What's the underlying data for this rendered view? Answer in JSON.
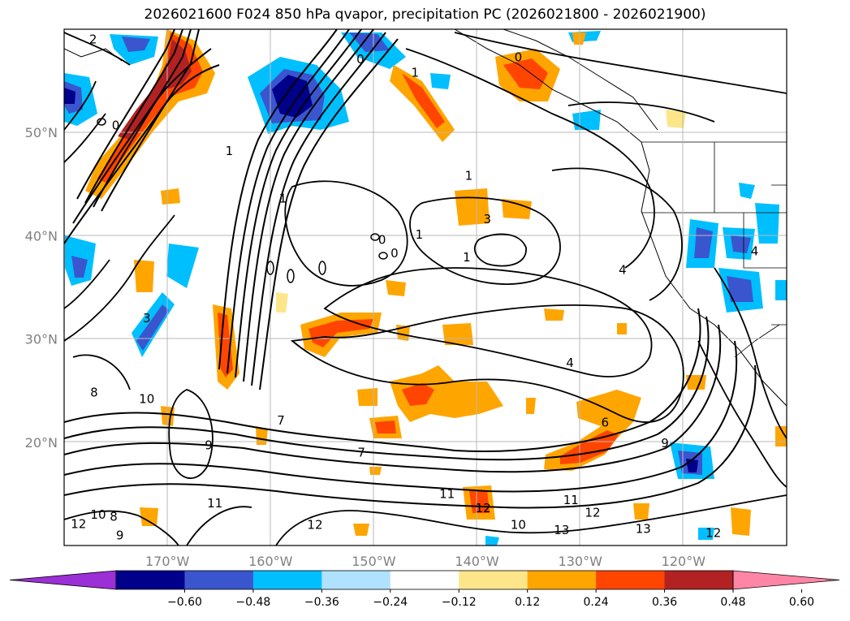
{
  "title": "2026021600 F024 850 hPa qvapor, precipitation PC (2026021800 - 2026021900)",
  "map": {
    "lon_range": [
      -180,
      -110
    ],
    "lat_range": [
      10,
      60
    ],
    "lat_ticks": [
      {
        "value": 20,
        "label": "20°N"
      },
      {
        "value": 30,
        "label": "30°N"
      },
      {
        "value": 40,
        "label": "40°N"
      },
      {
        "value": 50,
        "label": "50°N"
      }
    ],
    "lon_ticks": [
      {
        "value": -170,
        "label": "170°W"
      },
      {
        "value": -160,
        "label": "160°W"
      },
      {
        "value": -150,
        "label": "150°W"
      },
      {
        "value": -140,
        "label": "140°W"
      },
      {
        "value": -130,
        "label": "130°W"
      },
      {
        "value": -120,
        "label": "120°W"
      }
    ],
    "grid": true
  },
  "colorbar": {
    "ticks": [
      "-0.60",
      "-0.48",
      "-0.36",
      "-0.24",
      "-0.12",
      "0.12",
      "0.24",
      "0.36",
      "0.48",
      "0.60"
    ],
    "colors": [
      "#9b30d6",
      "#00008b",
      "#3a56cf",
      "#00bfff",
      "#b0e2ff",
      "#ffffff",
      "#fde68a",
      "#ffa500",
      "#ff4500",
      "#b22222",
      "#ff85a6"
    ],
    "extend": "both"
  },
  "contour_labels": [
    {
      "text": "2",
      "lon": -177.2,
      "lat": 59.0
    },
    {
      "text": "0",
      "lon": -151.3,
      "lat": 57.1
    },
    {
      "text": "1",
      "lon": -146.0,
      "lat": 55.8
    },
    {
      "text": "0",
      "lon": -136.0,
      "lat": 57.3
    },
    {
      "text": "1",
      "lon": -164.0,
      "lat": 48.2
    },
    {
      "text": "0",
      "lon": -175.0,
      "lat": 50.7
    },
    {
      "text": "1",
      "lon": -158.8,
      "lat": 43.6
    },
    {
      "text": "1",
      "lon": -140.8,
      "lat": 45.8
    },
    {
      "text": "3",
      "lon": -139.0,
      "lat": 41.6
    },
    {
      "text": "1",
      "lon": -145.6,
      "lat": 40.1
    },
    {
      "text": "0",
      "lon": -149.2,
      "lat": 39.6
    },
    {
      "text": "0",
      "lon": -148.0,
      "lat": 38.3
    },
    {
      "text": "1",
      "lon": -141.0,
      "lat": 37.9
    },
    {
      "text": "4",
      "lon": -125.9,
      "lat": 36.7
    },
    {
      "text": "4",
      "lon": -113.1,
      "lat": 38.5
    },
    {
      "text": "3",
      "lon": -172.0,
      "lat": 32.0
    },
    {
      "text": "4",
      "lon": -131.0,
      "lat": 27.7
    },
    {
      "text": "8",
      "lon": -177.1,
      "lat": 24.8
    },
    {
      "text": "10",
      "lon": -172.0,
      "lat": 24.2
    },
    {
      "text": "6",
      "lon": -127.6,
      "lat": 21.9
    },
    {
      "text": "7",
      "lon": -159.0,
      "lat": 22.1
    },
    {
      "text": "9",
      "lon": -166.0,
      "lat": 19.7
    },
    {
      "text": "7",
      "lon": -151.2,
      "lat": 19.0
    },
    {
      "text": "9",
      "lon": -121.8,
      "lat": 19.9
    },
    {
      "text": "11",
      "lon": -142.9,
      "lat": 15.0
    },
    {
      "text": "11",
      "lon": -130.9,
      "lat": 14.4
    },
    {
      "text": "11",
      "lon": -165.4,
      "lat": 14.1
    },
    {
      "text": "12",
      "lon": -139.4,
      "lat": 13.6
    },
    {
      "text": "12",
      "lon": -128.8,
      "lat": 13.2
    },
    {
      "text": "12",
      "lon": -155.7,
      "lat": 12.0
    },
    {
      "text": "8",
      "lon": -175.2,
      "lat": 12.8
    },
    {
      "text": "10",
      "lon": -176.7,
      "lat": 13.0
    },
    {
      "text": "12",
      "lon": -178.6,
      "lat": 12.1
    },
    {
      "text": "10",
      "lon": -136.0,
      "lat": 12.0
    },
    {
      "text": "13",
      "lon": -131.8,
      "lat": 11.5
    },
    {
      "text": "13",
      "lon": -123.9,
      "lat": 11.6
    },
    {
      "text": "12",
      "lon": -117.1,
      "lat": 11.2
    },
    {
      "text": "9",
      "lon": -174.6,
      "lat": 11.0
    }
  ]
}
